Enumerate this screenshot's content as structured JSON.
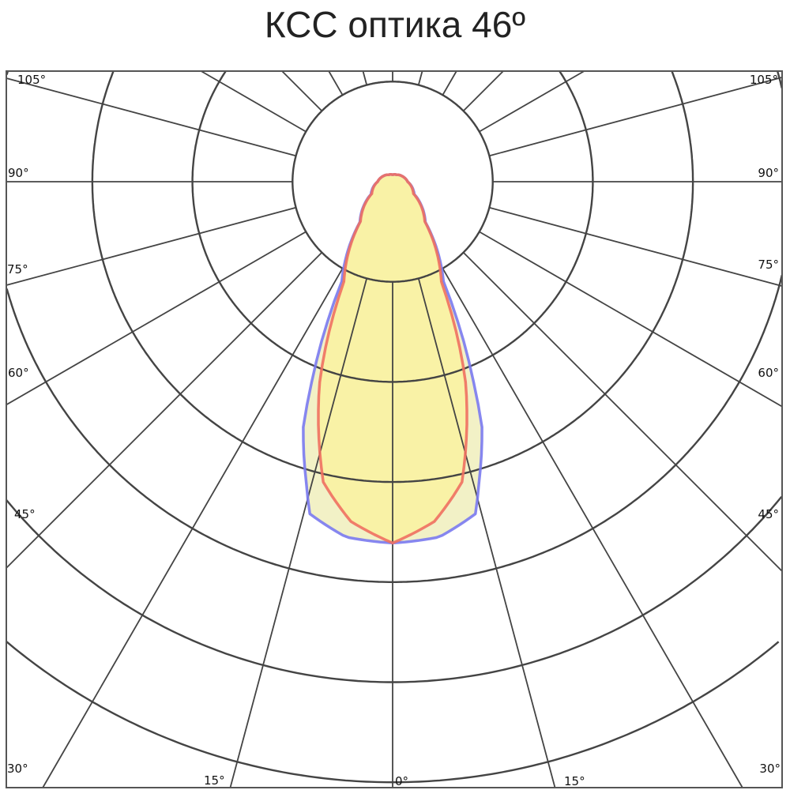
{
  "title": "КСС оптика 46º",
  "chart_data": {
    "type": "polar",
    "title": "КСС оптика 46º",
    "angle_unit": "degrees",
    "angle_zero": "down",
    "angular_grid_step": 15,
    "radial_grid_rings": [
      1,
      2,
      3,
      4,
      5,
      6
    ],
    "grid": true,
    "tick_labels": {
      "left": [
        "105°",
        "90°",
        "75°",
        "60°",
        "45°",
        "30°"
      ],
      "bottom": [
        "15°",
        "0°",
        "15°"
      ],
      "right": [
        "105°",
        "90°",
        "75°",
        "60°",
        "45°",
        "30°"
      ]
    },
    "series": [
      {
        "color": "#f07060",
        "fill": "#f9f2a6",
        "angles": [
          0,
          7,
          13,
          20,
          26,
          39,
          60,
          90,
          120,
          150,
          180
        ],
        "values": [
          3.61,
          3.42,
          3.08,
          2.13,
          1.11,
          0.51,
          0.24,
          0.15,
          0.11,
          0.08,
          0.07
        ]
      },
      {
        "color": "#7a7af0",
        "fill": "#f2f1c6",
        "angles": [
          0,
          7.5,
          14,
          16,
          20,
          22,
          27,
          39,
          60,
          90,
          120,
          150,
          180
        ],
        "values": [
          3.61,
          3.58,
          3.42,
          3.13,
          2.61,
          2.16,
          1.12,
          0.52,
          0.25,
          0.15,
          0.11,
          0.08,
          0.07
        ]
      }
    ]
  }
}
